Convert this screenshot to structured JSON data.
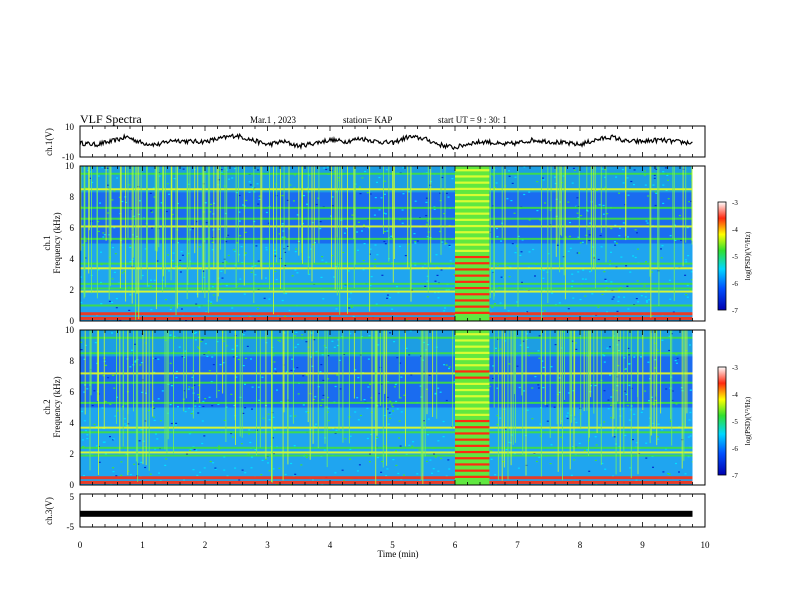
{
  "header": {
    "title": "VLF Spectra",
    "date": "Mar.1 , 2023",
    "station": "station= KAP",
    "start": "start UT = 9 : 30: 1"
  },
  "chart_data": [
    {
      "type": "line",
      "panel": "ch1",
      "ylabel": "ch.1(V)",
      "y_ticks": [
        "10",
        "-10"
      ],
      "ylim": [
        -10,
        10
      ],
      "xlim": [
        0,
        10
      ],
      "x": [
        0,
        0.25,
        0.5,
        0.75,
        1,
        1.25,
        1.5,
        1.75,
        2,
        2.25,
        2.5,
        2.75,
        3,
        3.25,
        3.5,
        3.75,
        4,
        4.25,
        4.5,
        4.75,
        5,
        5.25,
        5.5,
        5.75,
        6,
        6.25,
        6.5,
        6.75,
        7,
        7.25,
        7.5,
        7.75,
        8,
        8.25,
        8.5,
        8.75,
        9,
        9.25,
        9.5,
        9.8
      ],
      "values": [
        -1,
        -2,
        0,
        3,
        -1,
        -2,
        1,
        0,
        0,
        2,
        4,
        1,
        -2,
        0,
        -3,
        -1,
        1,
        0,
        2,
        0,
        -1,
        3,
        2,
        -2,
        -4,
        -1,
        0,
        -2,
        -1,
        1,
        0,
        -1,
        -2,
        1,
        3,
        0,
        0,
        1,
        0,
        -1
      ]
    },
    {
      "type": "heatmap",
      "panel": "ch1-spectrogram",
      "ylabel": "ch.1\nFrequency (kHz)",
      "y_ticks": [
        "0",
        "2",
        "4",
        "6",
        "8",
        "10"
      ],
      "ylim": [
        0,
        10
      ],
      "xlim": [
        0,
        10
      ],
      "colorbar": {
        "label": "log(PSD)(V²/Hz)",
        "ticks": [
          "-3",
          "-4",
          "-5",
          "-6",
          "-7"
        ],
        "range": [
          -7,
          -3
        ]
      },
      "bands_khz": [
        0.2,
        0.5,
        1.0,
        1.9,
        2.1,
        2.4,
        3.4,
        3.7,
        5.3,
        6.1,
        6.6,
        7.3,
        8.5,
        9.5
      ],
      "burst_min": [
        6.0,
        6.55
      ]
    },
    {
      "type": "heatmap",
      "panel": "ch2-spectrogram",
      "ylabel": "ch.2\nFrequency (kHz)",
      "y_ticks": [
        "0",
        "2",
        "4",
        "6",
        "8",
        "10"
      ],
      "ylim": [
        0,
        10
      ],
      "xlim": [
        0,
        10
      ],
      "colorbar": {
        "label": "log(PSD)(V²/Hz)",
        "ticks": [
          "-3",
          "-4",
          "-5",
          "-6",
          "-7"
        ],
        "range": [
          -7,
          -3
        ]
      },
      "bands_khz": [
        0.2,
        0.5,
        1.9,
        2.1,
        2.4,
        3.4,
        3.7,
        5.3,
        6.6,
        7.2,
        8.5,
        9.5
      ],
      "burst_min": [
        6.0,
        6.55
      ]
    },
    {
      "type": "line",
      "panel": "ch3",
      "ylabel": "ch.3(V)",
      "y_ticks": [
        "5",
        "-5"
      ],
      "ylim": [
        -5,
        5
      ],
      "xlim": [
        0,
        10
      ],
      "x": [
        0,
        9.8
      ],
      "values": [
        -1,
        -1
      ]
    }
  ],
  "xaxis": {
    "label": "Time (min)",
    "ticks": [
      "0",
      "1",
      "2",
      "3",
      "4",
      "5",
      "6",
      "7",
      "8",
      "9",
      "10"
    ]
  },
  "colors": {
    "frame": "#000000",
    "burst": "#ff2a10"
  }
}
